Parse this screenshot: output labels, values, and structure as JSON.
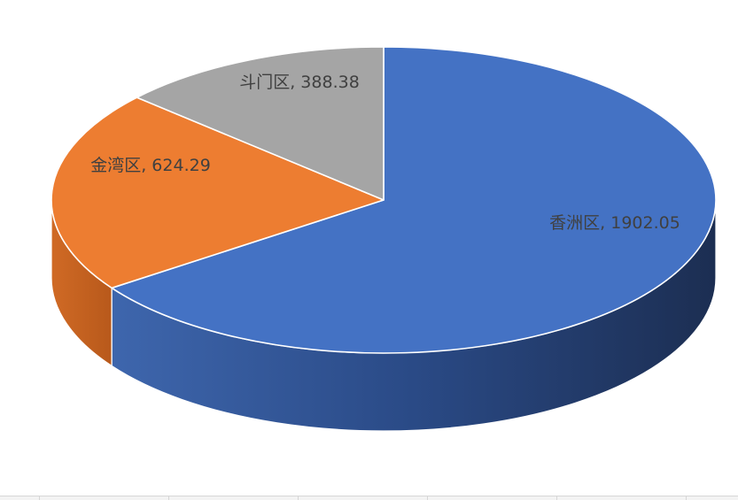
{
  "chart_data": {
    "type": "pie",
    "style": "3d",
    "legend": "none",
    "slices": [
      {
        "label": "香洲区",
        "value": 1902.05,
        "display": "香洲区, 1902.05",
        "color": "#4472c4",
        "side_color": "#2f4f8a"
      },
      {
        "label": "金湾区",
        "value": 624.29,
        "display": "金湾区, 624.29",
        "color": "#ed7d31",
        "side_color": "#c1601f"
      },
      {
        "label": "斗门区",
        "value": 388.38,
        "display": "斗门区, 388.38",
        "color": "#a5a5a5",
        "side_color": "#7f7f7f"
      }
    ]
  }
}
